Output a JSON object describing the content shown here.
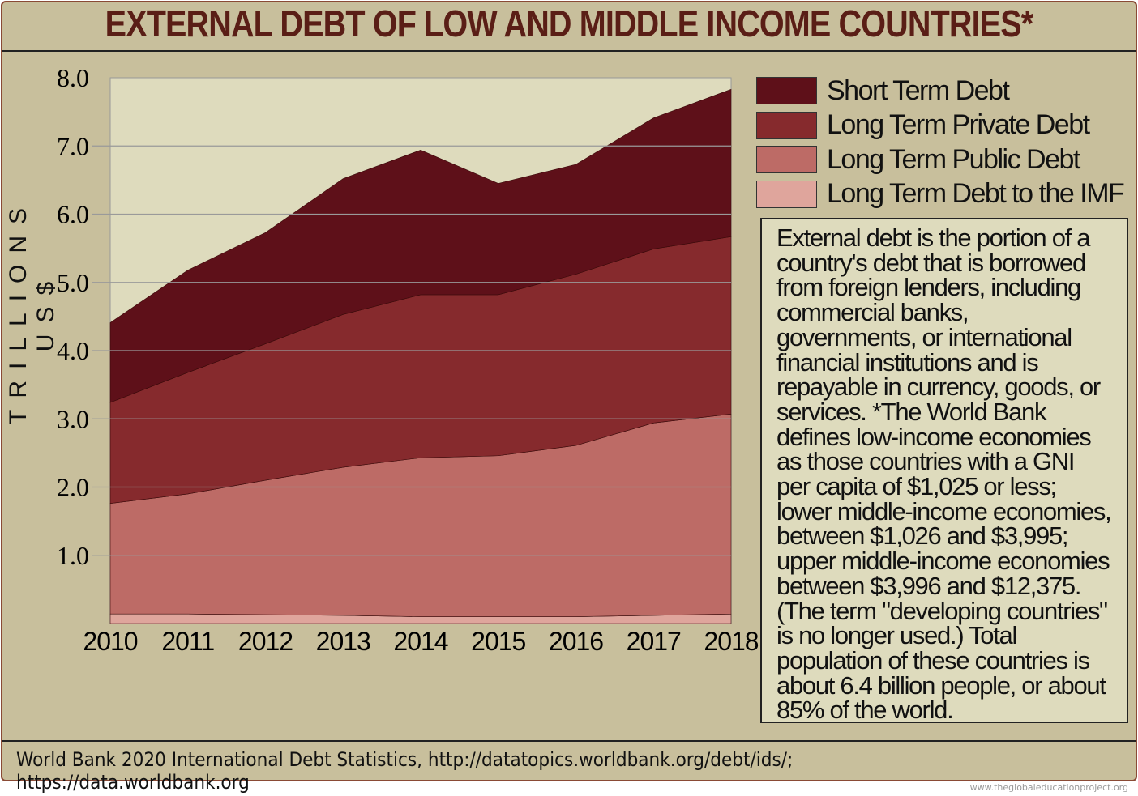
{
  "title": "EXTERNAL DEBT OF LOW AND MIDDLE INCOME COUNTRIES*",
  "source": "World Bank 2020 International Debt Statistics, http://datatopics.worldbank.org/debt/ids/; https://data.worldbank.org",
  "credit": "www.theglobaleducationproject.org",
  "note": "External debt is the portion of a country's debt that is borrowed from foreign lenders, including commercial banks, governments, or international financial institutions and is repayable in currency, goods, or services. *The World Bank defines low-income economies as those countries with a GNI per capita of $1,025 or less; lower middle-income economies, between $1,026 and $3,995; upper middle-income economies between $3,996 and $12,375. (The term \"developing countries\" is no longer used.) Total population of these countries is about 6.4 billion people, or about 85% of the world.",
  "chart_data": {
    "type": "area",
    "stacked": true,
    "title": "EXTERNAL DEBT OF LOW AND MIDDLE INCOME COUNTRIES*",
    "xlabel": "",
    "ylabel": "TRILLIONS US$",
    "categories": [
      "2010",
      "2011",
      "2012",
      "2013",
      "2014",
      "2015",
      "2016",
      "2017",
      "2018"
    ],
    "yticks": [
      "1.0",
      "2.0",
      "3.0",
      "4.0",
      "5.0",
      "6.0",
      "7.0",
      "8.0"
    ],
    "ylim": [
      0,
      8
    ],
    "grid": true,
    "legend": "right",
    "series": [
      {
        "name": "Long Term Debt to the IMF",
        "color": "#dfa59c",
        "values": [
          0.14,
          0.14,
          0.13,
          0.12,
          0.1,
          0.1,
          0.1,
          0.12,
          0.14
        ]
      },
      {
        "name": "Long Term Public Debt",
        "color": "#bd6b66",
        "values": [
          1.62,
          1.76,
          1.97,
          2.17,
          2.33,
          2.36,
          2.51,
          2.82,
          2.93
        ]
      },
      {
        "name": "Long Term Private Debt",
        "color": "#862a2d",
        "values": [
          1.48,
          1.78,
          2.0,
          2.24,
          2.39,
          2.36,
          2.51,
          2.55,
          2.6
        ]
      },
      {
        "name": "Short Term Debt",
        "color": "#5e1019",
        "values": [
          1.17,
          1.5,
          1.63,
          1.99,
          2.12,
          1.63,
          1.61,
          1.92,
          2.16
        ]
      }
    ],
    "legend_order": [
      3,
      2,
      1,
      0
    ]
  }
}
